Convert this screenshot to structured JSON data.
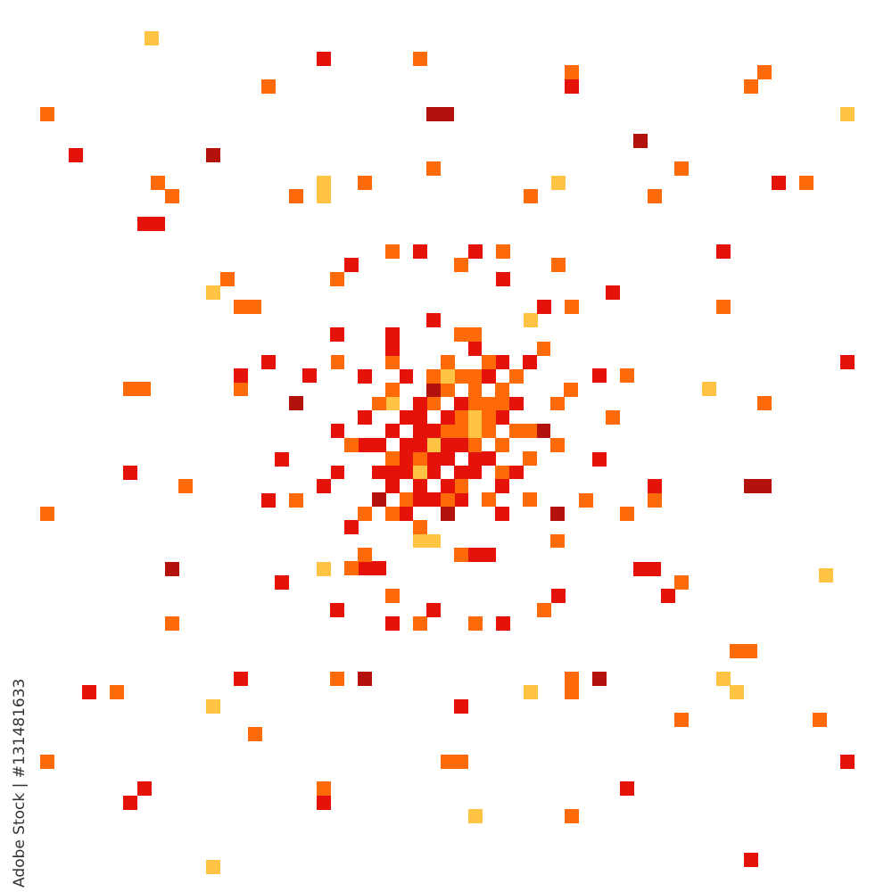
{
  "artwork": {
    "description_colors": {
      "yellow": "#FFC444",
      "orange": "#FF6A08",
      "red": "#E51209",
      "dark_red": "#B3110C"
    }
  },
  "watermark": {
    "text": "Adobe Stock | #131481633"
  }
}
